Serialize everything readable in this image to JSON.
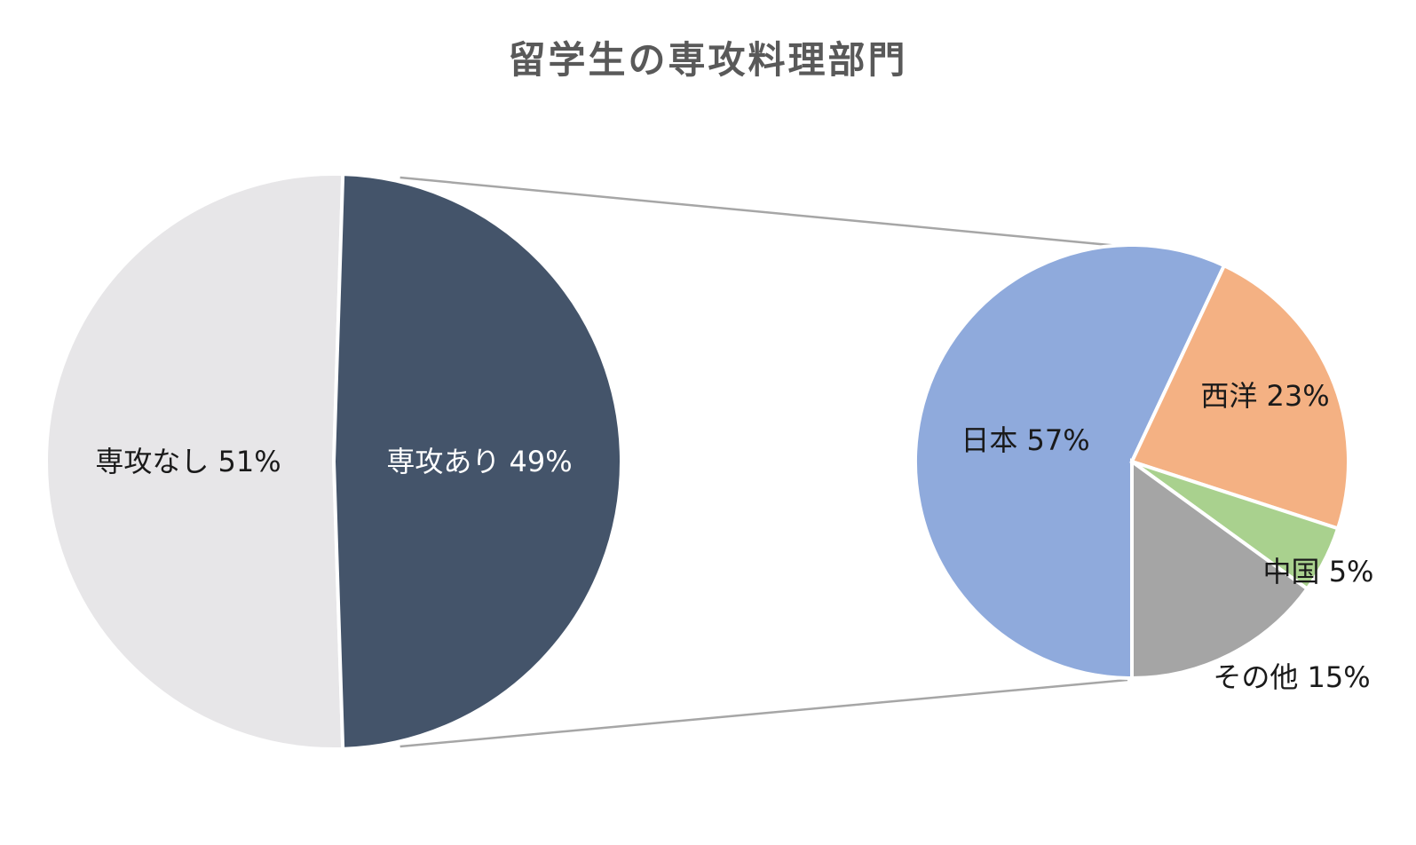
{
  "chart_data": {
    "type": "pie",
    "subtype": "pie-of-pie",
    "title": "留学生の専攻料理部門",
    "main_pie": {
      "slices": [
        {
          "label": "専攻なし",
          "value": 51,
          "value_label": "51%",
          "color": "#E7E6E8",
          "label_color": "#1a1a1a"
        },
        {
          "label": "専攻あり",
          "value": 49,
          "value_label": "49%",
          "color": "#44546A",
          "label_color": "#ffffff"
        }
      ]
    },
    "breakout_of": "専攻あり",
    "secondary_pie": {
      "slices": [
        {
          "label": "日本",
          "value": 57,
          "value_label": "57%",
          "color": "#8FAADC",
          "label_color": "#1a1a1a"
        },
        {
          "label": "西洋",
          "value": 23,
          "value_label": "23%",
          "color": "#F4B183",
          "label_color": "#1a1a1a"
        },
        {
          "label": "中国",
          "value": 5,
          "value_label": "5%",
          "color": "#A9D18E",
          "label_color": "#1a1a1a"
        },
        {
          "label": "その他",
          "value": 15,
          "value_label": "15%",
          "color": "#A5A5A5",
          "label_color": "#1a1a1a"
        }
      ]
    },
    "connector_color": "#A6A6A6"
  }
}
